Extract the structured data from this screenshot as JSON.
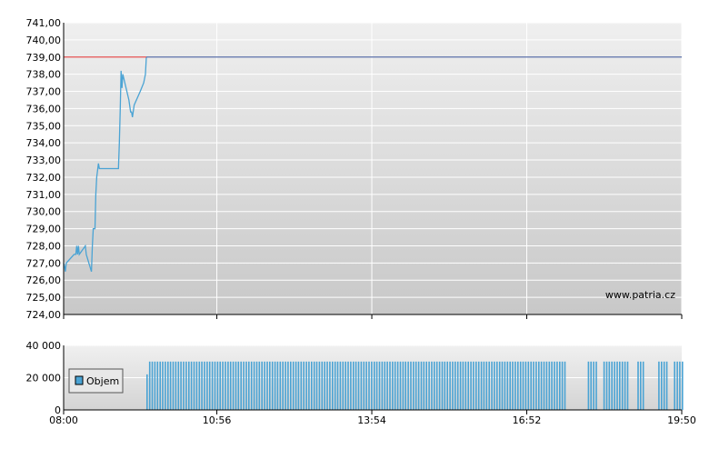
{
  "chart_data": [
    {
      "type": "line",
      "watermark": "www.patria.cz",
      "x_tick_labels": [
        "08:00",
        "10:56",
        "13:54",
        "16:52",
        "19:50"
      ],
      "y_tick_labels": [
        "741,00",
        "740,00",
        "739,00",
        "738,00",
        "737,00",
        "736,00",
        "735,00",
        "734,00",
        "733,00",
        "732,00",
        "731,00",
        "730,00",
        "729,00",
        "728,00",
        "727,00",
        "726,00",
        "725,00",
        "724,00"
      ],
      "y_ticks": [
        741,
        740,
        739,
        738,
        737,
        736,
        735,
        734,
        733,
        732,
        731,
        730,
        729,
        728,
        727,
        726,
        725,
        724
      ],
      "ylim": [
        724,
        741
      ],
      "xlim": [
        "08:00",
        "19:50"
      ],
      "grid": true,
      "colors": {
        "price": "#4aa3d4",
        "reference": "#e45050",
        "close": "#5a6fa8",
        "panel_top": "#efefef",
        "panel_bottom": "#c8c8c8"
      },
      "series": [
        {
          "role": "price",
          "points": [
            [
              "08:00",
              727.0
            ],
            [
              "08:01",
              726.8
            ],
            [
              "08:02",
              726.5
            ],
            [
              "08:03",
              727.0
            ],
            [
              "08:12",
              727.5
            ],
            [
              "08:14",
              727.5
            ],
            [
              "08:15",
              728.0
            ],
            [
              "08:16",
              727.5
            ],
            [
              "08:17",
              728.0
            ],
            [
              "08:18",
              727.5
            ],
            [
              "08:25",
              728.0
            ],
            [
              "08:26",
              727.5
            ],
            [
              "08:32",
              726.5
            ],
            [
              "08:33",
              728.0
            ],
            [
              "08:34",
              729.0
            ],
            [
              "08:36",
              729.0
            ],
            [
              "08:37",
              731.0
            ],
            [
              "08:38",
              732.0
            ],
            [
              "08:40",
              732.8
            ],
            [
              "08:41",
              732.5
            ],
            [
              "09:03",
              732.5
            ],
            [
              "09:04",
              734.0
            ],
            [
              "09:05",
              736.0
            ],
            [
              "09:06",
              738.2
            ],
            [
              "09:07",
              737.2
            ],
            [
              "09:08",
              738.0
            ],
            [
              "09:15",
              736.5
            ],
            [
              "09:17",
              735.8
            ],
            [
              "09:18",
              735.8
            ],
            [
              "09:19",
              735.5
            ],
            [
              "09:21",
              736.2
            ],
            [
              "09:28",
              737.0
            ],
            [
              "09:32",
              737.5
            ],
            [
              "09:34",
              738.0
            ],
            [
              "09:35",
              739.0
            ]
          ]
        },
        {
          "role": "reference",
          "value": 739.0,
          "x_start": "08:00",
          "x_end": "09:35"
        },
        {
          "role": "close",
          "value": 739.0,
          "x_start": "09:35",
          "x_end": "19:50"
        }
      ]
    },
    {
      "type": "bar",
      "y_tick_labels": [
        "40 000",
        "20 000",
        "0"
      ],
      "y_ticks": [
        40000,
        20000,
        0
      ],
      "ylim": [
        0,
        40000
      ],
      "x_tick_labels": [
        "08:00",
        "10:56",
        "13:54",
        "16:52",
        "19:50"
      ],
      "grid": true,
      "colors": {
        "bars": "#4aa3d4"
      },
      "legend": {
        "entries": [
          "Objem"
        ],
        "placement": "left"
      },
      "series": [
        {
          "name": "Objem",
          "start": "09:35",
          "end": "19:50",
          "bar_value": 30000,
          "first_bar_value": 22000,
          "gaps": [
            [
              "17:37",
              "18:00"
            ],
            [
              "18:12",
              "18:18"
            ],
            [
              "18:48",
              "18:58"
            ],
            [
              "19:06",
              "19:22"
            ],
            [
              "19:34",
              "19:40"
            ]
          ]
        }
      ]
    }
  ]
}
